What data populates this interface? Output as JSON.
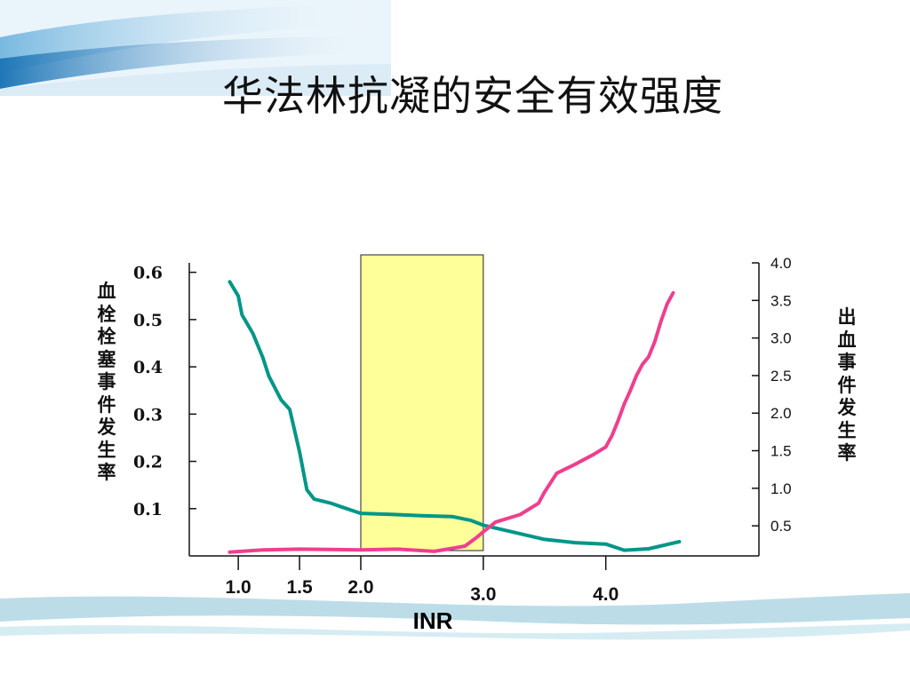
{
  "title": "华法林抗凝的安全有效强度",
  "chart_data": {
    "type": "line",
    "xlabel": "INR",
    "x_ticks": [
      "1.0",
      "1.5",
      "2.0",
      "3.0",
      "4.0"
    ],
    "xlim": [
      0.6,
      5.25
    ],
    "left_axis": {
      "label": "血栓栓塞事件发生率",
      "ticks": [
        "0.6",
        "0.5",
        "0.4",
        "0.3",
        "0.2",
        "0.1"
      ],
      "ylim": [
        0.0,
        0.62
      ]
    },
    "right_axis": {
      "label": "出血事件发生率",
      "ticks": [
        "4.0",
        "3.5",
        "3.0",
        "2.5",
        "2.0",
        "1.5",
        "1.0",
        "0.5"
      ],
      "ylim": [
        0.1,
        4.0
      ]
    },
    "target_range": {
      "from": 2.0,
      "to": 3.0,
      "color": "#ffff99"
    },
    "series": [
      {
        "axis": "left",
        "color": "#009688",
        "points": [
          [
            0.93,
            0.58
          ],
          [
            1.0,
            0.55
          ],
          [
            1.03,
            0.51
          ],
          [
            1.12,
            0.47
          ],
          [
            1.2,
            0.42
          ],
          [
            1.25,
            0.38
          ],
          [
            1.35,
            0.33
          ],
          [
            1.42,
            0.31
          ],
          [
            1.5,
            0.22
          ],
          [
            1.56,
            0.14
          ],
          [
            1.62,
            0.12
          ],
          [
            1.75,
            0.112
          ],
          [
            1.85,
            0.103
          ],
          [
            2.0,
            0.09
          ],
          [
            2.25,
            0.088
          ],
          [
            2.5,
            0.085
          ],
          [
            2.75,
            0.083
          ],
          [
            2.9,
            0.075
          ],
          [
            3.0,
            0.065
          ],
          [
            3.25,
            0.05
          ],
          [
            3.5,
            0.035
          ],
          [
            3.75,
            0.028
          ],
          [
            4.0,
            0.025
          ],
          [
            4.15,
            0.012
          ],
          [
            4.35,
            0.015
          ],
          [
            4.6,
            0.03
          ]
        ]
      },
      {
        "axis": "right",
        "color": "#ee3f8e",
        "points": [
          [
            0.93,
            0.15
          ],
          [
            1.2,
            0.18
          ],
          [
            1.5,
            0.19
          ],
          [
            2.0,
            0.18
          ],
          [
            2.3,
            0.19
          ],
          [
            2.6,
            0.16
          ],
          [
            2.85,
            0.23
          ],
          [
            2.95,
            0.35
          ],
          [
            3.0,
            0.42
          ],
          [
            3.1,
            0.55
          ],
          [
            3.3,
            0.65
          ],
          [
            3.45,
            0.8
          ],
          [
            3.5,
            0.95
          ],
          [
            3.6,
            1.2
          ],
          [
            3.75,
            1.32
          ],
          [
            3.9,
            1.45
          ],
          [
            4.0,
            1.55
          ],
          [
            4.05,
            1.7
          ],
          [
            4.1,
            1.9
          ],
          [
            4.15,
            2.12
          ],
          [
            4.2,
            2.3
          ],
          [
            4.25,
            2.5
          ],
          [
            4.3,
            2.65
          ],
          [
            4.35,
            2.75
          ],
          [
            4.4,
            2.95
          ],
          [
            4.45,
            3.22
          ],
          [
            4.5,
            3.45
          ],
          [
            4.55,
            3.6
          ]
        ]
      }
    ]
  }
}
